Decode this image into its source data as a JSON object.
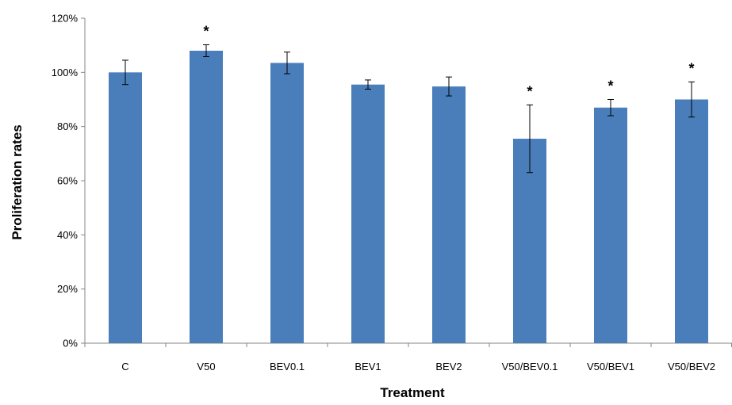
{
  "chart_data": {
    "type": "bar",
    "title": "",
    "xlabel": "Treatment",
    "ylabel": "Proliferation rates",
    "categories": [
      "C",
      "V50",
      "BEV0.1",
      "BEV1",
      "BEV2",
      "V50/BEV0.1",
      "V50/BEV1",
      "V50/BEV2"
    ],
    "series": [
      {
        "values": [
          100,
          108,
          103.5,
          95.5,
          94.8,
          75.5,
          87,
          90
        ],
        "error": [
          4.5,
          2.2,
          4,
          1.7,
          3.5,
          12.5,
          3,
          6.5
        ],
        "significance": [
          "",
          "*",
          "",
          "",
          "",
          "*",
          "*",
          "*"
        ],
        "color": "#4a7ebb"
      }
    ],
    "ylim": [
      0,
      120
    ],
    "yticks": [
      0,
      20,
      40,
      60,
      80,
      100,
      120
    ],
    "ytick_labels": [
      "0%",
      "20%",
      "40%",
      "60%",
      "80%",
      "100%",
      "120%"
    ],
    "grid": false,
    "legend": "none"
  }
}
